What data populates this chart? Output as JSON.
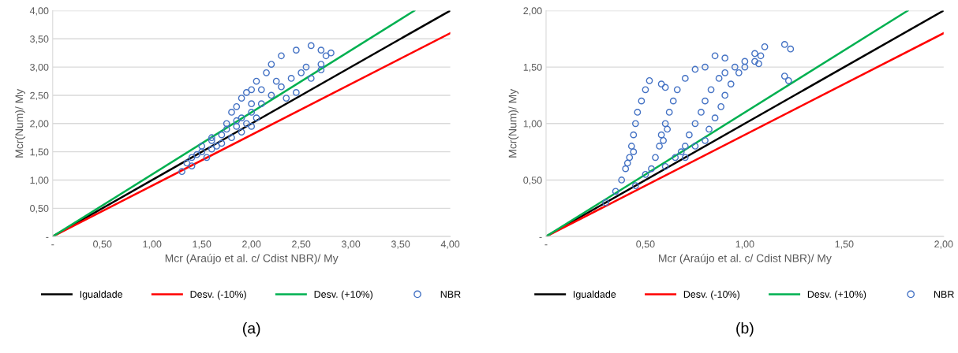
{
  "chart_data": [
    {
      "type": "scatter",
      "xlabel": "Mcr (Araújo et al. c/ Cdist NBR)/ My",
      "ylabel": "Mcr(Num)/ My",
      "annotations": [
        "(a)"
      ],
      "grid": "y",
      "legend": "bottom",
      "xlim": [
        0,
        4
      ],
      "ylim": [
        0,
        4
      ],
      "xticks": [
        {
          "value": 0,
          "label": "-"
        },
        {
          "value": 0.5,
          "label": "0,50"
        },
        {
          "value": 1,
          "label": "1,00"
        },
        {
          "value": 1.5,
          "label": "1,50"
        },
        {
          "value": 2,
          "label": "2,00"
        },
        {
          "value": 2.5,
          "label": "2,50"
        },
        {
          "value": 3,
          "label": "3,00"
        },
        {
          "value": 3.5,
          "label": "3,50"
        },
        {
          "value": 4,
          "label": "4,00"
        }
      ],
      "yticks": [
        {
          "value": 0,
          "label": "-"
        },
        {
          "value": 0.5,
          "label": "0,50"
        },
        {
          "value": 1,
          "label": "1,00"
        },
        {
          "value": 1.5,
          "label": "1,50"
        },
        {
          "value": 2,
          "label": "2,00"
        },
        {
          "value": 2.5,
          "label": "2,50"
        },
        {
          "value": 3,
          "label": "3,00"
        },
        {
          "value": 3.5,
          "label": "3,50"
        },
        {
          "value": 4,
          "label": "4,00"
        }
      ],
      "series": [
        {
          "name": "Igualdade",
          "type": "line",
          "color": "#000000",
          "marker": "none",
          "x": [
            0,
            4
          ],
          "values": [
            0,
            4
          ]
        },
        {
          "name": "Desv. (-10%)",
          "type": "line",
          "color": "#ff0000",
          "marker": "none",
          "x": [
            0,
            4
          ],
          "values": [
            0,
            3.6
          ]
        },
        {
          "name": "Desv. (+10%)",
          "type": "line",
          "color": "#00b050",
          "marker": "none",
          "x": [
            0,
            3.64
          ],
          "values": [
            0,
            4
          ]
        },
        {
          "name": "NBR",
          "color": "#4472c4",
          "marker": "circle",
          "x": [
            1.6,
            1.75,
            1.85,
            1.95,
            2.05,
            2.15,
            2.2,
            2.3,
            2.45,
            2.6,
            2.7,
            2.75,
            2.8,
            1.9,
            2.0,
            2.1,
            2.2,
            2.3,
            2.4,
            2.5,
            2.55,
            2.7,
            1.3,
            1.35,
            1.4,
            1.45,
            1.5,
            1.55,
            1.6,
            1.7,
            1.8,
            1.9,
            2.0,
            1.75,
            1.85,
            1.7,
            1.65,
            1.8,
            1.9,
            2.0,
            2.1,
            2.25,
            2.35,
            2.45,
            2.6,
            2.7,
            1.95,
            2.05,
            1.6,
            1.5,
            1.4,
            2.0,
            1.85
          ],
          "values": [
            1.75,
            2.0,
            2.3,
            2.55,
            2.75,
            2.9,
            3.05,
            3.2,
            3.3,
            3.38,
            3.3,
            3.2,
            3.25,
            2.1,
            2.2,
            2.35,
            2.5,
            2.65,
            2.8,
            2.9,
            3.0,
            3.05,
            1.15,
            1.3,
            1.25,
            1.45,
            1.5,
            1.4,
            1.55,
            1.65,
            1.75,
            1.85,
            1.95,
            1.9,
            2.05,
            1.8,
            1.6,
            2.2,
            2.45,
            2.6,
            2.6,
            2.75,
            2.45,
            2.55,
            2.8,
            2.95,
            2.0,
            2.1,
            1.7,
            1.6,
            1.4,
            2.35,
            1.95
          ]
        }
      ]
    },
    {
      "type": "scatter",
      "xlabel": "Mcr (Araújo et al. c/ Cdist NBR)/ My",
      "ylabel": "Mcr(Num)/ My",
      "annotations": [
        "(b)"
      ],
      "grid": "y",
      "legend": "bottom",
      "xlim": [
        0,
        2
      ],
      "ylim": [
        0,
        2
      ],
      "xticks": [
        {
          "value": 0,
          "label": "-"
        },
        {
          "value": 0.5,
          "label": "0,50"
        },
        {
          "value": 1,
          "label": "1,00"
        },
        {
          "value": 1.5,
          "label": "1,50"
        },
        {
          "value": 2,
          "label": "2,00"
        }
      ],
      "yticks": [
        {
          "value": 0,
          "label": "-"
        },
        {
          "value": 0.5,
          "label": "0,50"
        },
        {
          "value": 1,
          "label": "1,00"
        },
        {
          "value": 1.5,
          "label": "1,50"
        },
        {
          "value": 2,
          "label": "2,00"
        }
      ],
      "series": [
        {
          "name": "Igualdade",
          "type": "line",
          "color": "#000000",
          "marker": "none",
          "x": [
            0,
            2
          ],
          "values": [
            0,
            2
          ]
        },
        {
          "name": "Desv. (-10%)",
          "type": "line",
          "color": "#ff0000",
          "marker": "none",
          "x": [
            0,
            2
          ],
          "values": [
            0,
            1.8
          ]
        },
        {
          "name": "Desv. (+10%)",
          "type": "line",
          "color": "#00b050",
          "marker": "none",
          "x": [
            0,
            1.82
          ],
          "values": [
            0,
            2
          ]
        },
        {
          "name": "NBR",
          "color": "#4472c4",
          "marker": "circle",
          "x": [
            0.3,
            0.35,
            0.38,
            0.4,
            0.42,
            0.43,
            0.44,
            0.45,
            0.46,
            0.48,
            0.5,
            0.52,
            0.58,
            0.6,
            0.41,
            0.44,
            0.45,
            0.5,
            0.53,
            0.55,
            0.57,
            0.58,
            0.6,
            0.62,
            0.64,
            0.66,
            0.7,
            0.75,
            0.8,
            0.85,
            0.9,
            0.59,
            0.61,
            0.6,
            0.65,
            0.7,
            0.72,
            0.75,
            0.78,
            0.8,
            0.83,
            0.87,
            0.9,
            0.95,
            1.0,
            1.05,
            1.1,
            1.2,
            1.23,
            1.2,
            1.22,
            0.68,
            0.7,
            0.75,
            0.8,
            0.82,
            0.85,
            0.88,
            0.9,
            0.93,
            0.97,
            1.0,
            1.05,
            1.07,
            1.08
          ],
          "values": [
            0.3,
            0.4,
            0.5,
            0.6,
            0.7,
            0.8,
            0.9,
            1.0,
            1.1,
            1.2,
            1.3,
            1.38,
            1.35,
            1.32,
            0.65,
            0.75,
            0.45,
            0.55,
            0.6,
            0.7,
            0.8,
            0.9,
            1.0,
            1.1,
            1.2,
            1.3,
            1.4,
            1.48,
            1.5,
            1.6,
            1.58,
            0.85,
            0.95,
            0.62,
            0.7,
            0.8,
            0.9,
            1.0,
            1.1,
            1.2,
            1.3,
            1.4,
            1.45,
            1.5,
            1.55,
            1.62,
            1.68,
            1.7,
            1.66,
            1.42,
            1.38,
            0.75,
            0.7,
            0.8,
            0.85,
            0.95,
            1.05,
            1.15,
            1.25,
            1.35,
            1.45,
            1.5,
            1.55,
            1.53,
            1.6
          ]
        }
      ]
    }
  ]
}
